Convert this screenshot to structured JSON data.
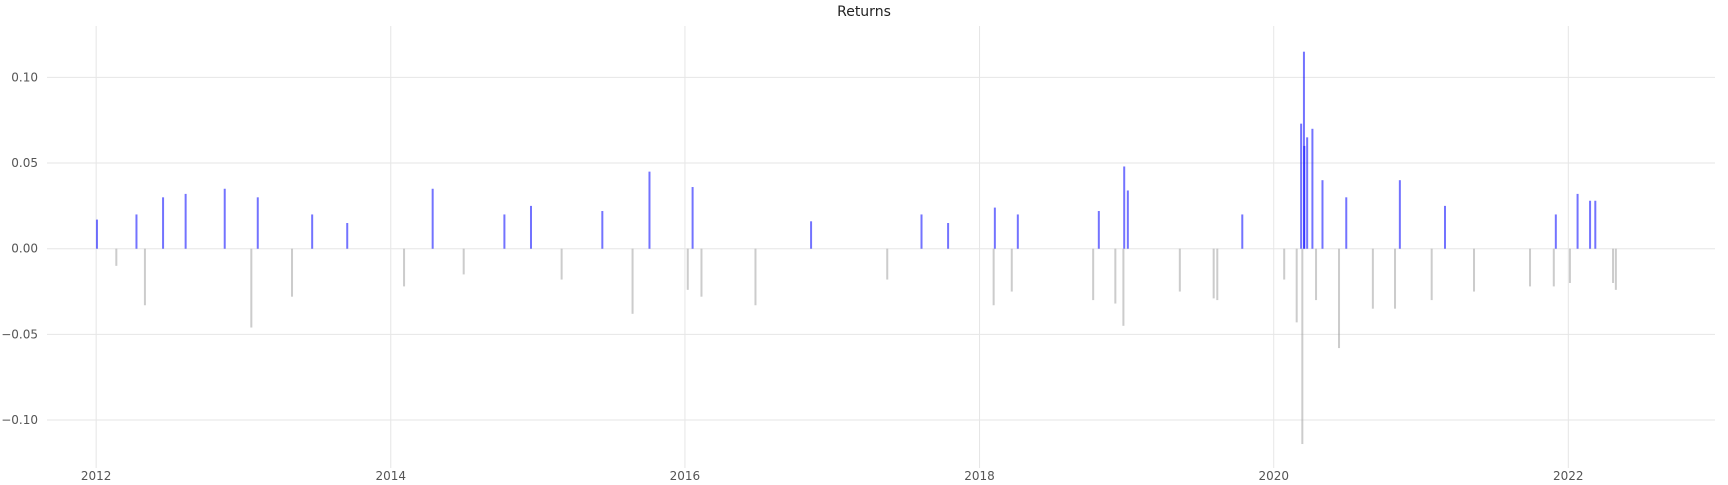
{
  "chart_data": {
    "type": "bar",
    "title": "Returns",
    "xlabel": "",
    "ylabel": "",
    "grid": true,
    "legend": "none",
    "x_ticks": [
      "2012",
      "2014",
      "2016",
      "2018",
      "2020",
      "2022"
    ],
    "y_ticks": [
      "−0.10",
      "−0.05",
      "0.00",
      "0.05",
      "0.10"
    ],
    "y_tick_values": [
      -0.1,
      -0.05,
      0.0,
      0.05,
      0.1
    ],
    "xlim": [
      "2011-09-01",
      "2022-12-31"
    ],
    "ylim": [
      -0.128,
      0.13
    ],
    "colors": {
      "positive": "#0000ff",
      "negative": "#999999",
      "grid": "#e6e6e6"
    },
    "x": [
      "2012-01-03",
      "2012-02-20",
      "2012-04-10",
      "2012-05-01",
      "2012-06-15",
      "2012-08-10",
      "2012-11-15",
      "2013-01-20",
      "2013-02-05",
      "2013-05-01",
      "2013-06-20",
      "2013-09-15",
      "2014-02-03",
      "2014-04-15",
      "2014-07-01",
      "2014-10-10",
      "2014-12-15",
      "2015-03-01",
      "2015-06-10",
      "2015-08-24",
      "2015-10-05",
      "2016-01-08",
      "2016-01-20",
      "2016-02-11",
      "2016-06-24",
      "2016-11-09",
      "2017-05-17",
      "2017-08-10",
      "2017-10-15",
      "2018-02-05",
      "2018-02-08",
      "2018-03-22",
      "2018-04-06",
      "2018-10-10",
      "2018-10-24",
      "2018-12-04",
      "2018-12-24",
      "2018-12-26",
      "2019-01-04",
      "2019-05-13",
      "2019-08-05",
      "2019-08-14",
      "2019-10-15",
      "2020-01-27",
      "2020-02-27",
      "2020-03-09",
      "2020-03-12",
      "2020-03-16",
      "2020-03-17",
      "2020-03-24",
      "2020-04-06",
      "2020-04-15",
      "2020-05-01",
      "2020-06-11",
      "2020-06-29",
      "2020-09-03",
      "2020-10-28",
      "2020-11-09",
      "2021-01-27",
      "2021-03-01",
      "2021-05-12",
      "2021-09-28",
      "2021-11-26",
      "2021-12-01",
      "2022-01-05",
      "2022-01-24",
      "2022-02-24",
      "2022-03-09",
      "2022-04-22",
      "2022-04-29"
    ],
    "values": [
      0.017,
      -0.01,
      0.02,
      -0.033,
      0.03,
      0.032,
      0.035,
      -0.046,
      0.03,
      -0.028,
      0.02,
      0.015,
      -0.022,
      0.035,
      -0.015,
      0.02,
      0.025,
      -0.018,
      0.022,
      -0.038,
      0.045,
      -0.024,
      0.036,
      -0.028,
      -0.033,
      0.016,
      -0.018,
      0.02,
      0.015,
      -0.033,
      0.024,
      -0.025,
      0.02,
      -0.03,
      0.022,
      -0.032,
      -0.045,
      0.048,
      0.034,
      -0.025,
      -0.029,
      -0.03,
      0.02,
      -0.018,
      -0.043,
      0.073,
      -0.114,
      0.115,
      0.06,
      0.065,
      0.07,
      -0.03,
      0.04,
      -0.058,
      0.03,
      -0.035,
      -0.035,
      0.04,
      -0.03,
      0.025,
      -0.025,
      -0.022,
      -0.022,
      0.02,
      -0.02,
      0.032,
      0.028,
      0.028,
      -0.02,
      -0.024
    ]
  }
}
